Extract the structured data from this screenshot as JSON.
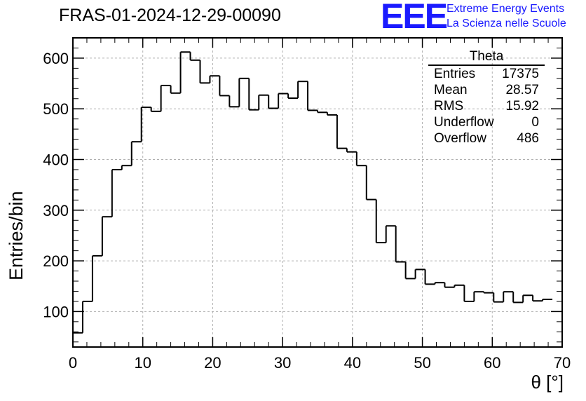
{
  "title": "FRAS-01-2024-12-29-00090",
  "logo": {
    "mark": "EEE",
    "line1": "Extreme Energy Events",
    "line2": "La Scienza nelle Scuole",
    "color": "#1a1aff"
  },
  "stats_box": {
    "name": "Theta",
    "rows": [
      {
        "label": "Entries",
        "value": "17375"
      },
      {
        "label": "Mean",
        "value": "28.57"
      },
      {
        "label": "RMS",
        "value": "15.92"
      },
      {
        "label": "Underflow",
        "value": "0"
      },
      {
        "label": "Overflow",
        "value": "486"
      }
    ]
  },
  "chart_data": {
    "type": "bar",
    "style": "step-histogram",
    "title": "FRAS-01-2024-12-29-00090",
    "xlabel": "θ [°]",
    "ylabel": "Entries/bin",
    "xlim": [
      0,
      70
    ],
    "ylim": [
      30,
      640
    ],
    "xticks": [
      0,
      10,
      20,
      30,
      40,
      50,
      60,
      70
    ],
    "yticks": [
      100,
      200,
      300,
      400,
      500,
      600
    ],
    "grid": true,
    "bin_width": 1.4,
    "bin_start": 0,
    "values": [
      58,
      120,
      210,
      287,
      380,
      388,
      435,
      503,
      495,
      546,
      531,
      612,
      596,
      551,
      565,
      526,
      504,
      560,
      498,
      527,
      501,
      530,
      521,
      554,
      497,
      493,
      488,
      422,
      415,
      388,
      321,
      236,
      269,
      198,
      165,
      183,
      154,
      157,
      148,
      152,
      120,
      139,
      137,
      119,
      139,
      118,
      132,
      121,
      124
    ]
  }
}
